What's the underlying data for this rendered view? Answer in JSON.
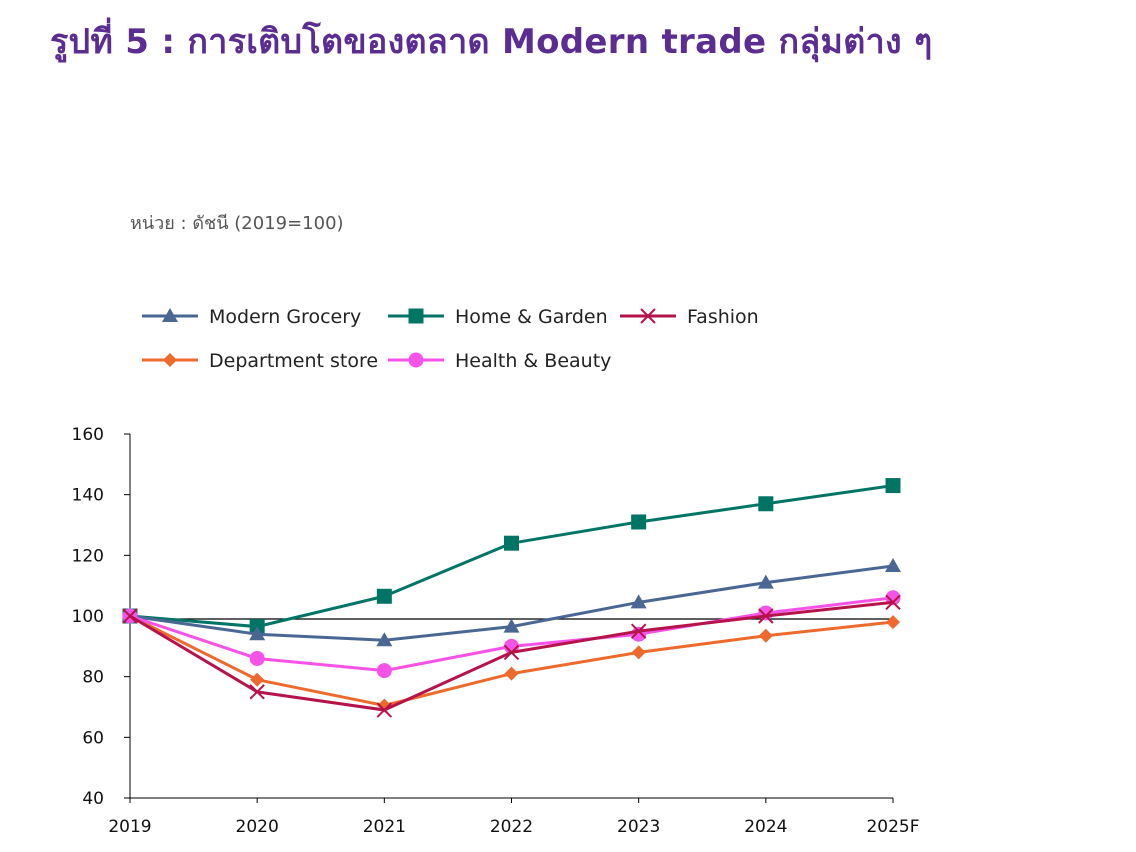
{
  "title": "รูปที่ 5 : การเติบโตของตลาด Modern trade กลุ่มต่าง ๆ",
  "unit_label": "หน่วย : ดัชนี (2019=100)",
  "chart_data": {
    "type": "line",
    "title": "",
    "xlabel": "",
    "ylabel": "",
    "x": [
      "2019",
      "2020",
      "2021",
      "2022",
      "2023",
      "2024",
      "2025F"
    ],
    "ylim": [
      40,
      160
    ],
    "yticks": [
      40,
      60,
      80,
      100,
      120,
      140,
      160
    ],
    "reference_line": 99,
    "legend_position": "top-left",
    "grid": false,
    "series": [
      {
        "name": "Modern Grocery",
        "color": "#4a6794",
        "marker": "triangle",
        "values": [
          100,
          94,
          92,
          96.5,
          104.5,
          111,
          116.5
        ]
      },
      {
        "name": "Home & Garden",
        "color": "#007565",
        "marker": "square",
        "values": [
          100,
          96.5,
          106.5,
          124,
          131,
          137,
          143
        ]
      },
      {
        "name": "Fashion",
        "color": "#b5134a",
        "marker": "x",
        "values": [
          100,
          75,
          69,
          88,
          95,
          100,
          104.5
        ]
      },
      {
        "name": "Department store",
        "color": "#ee6a2c",
        "marker": "diamond",
        "values": [
          100,
          79,
          70.5,
          81,
          88,
          93.5,
          98
        ]
      },
      {
        "name": "Health & Beauty",
        "color": "#f553e8",
        "marker": "circle",
        "values": [
          100,
          86,
          82,
          90,
          94,
          101,
          106
        ]
      }
    ]
  }
}
